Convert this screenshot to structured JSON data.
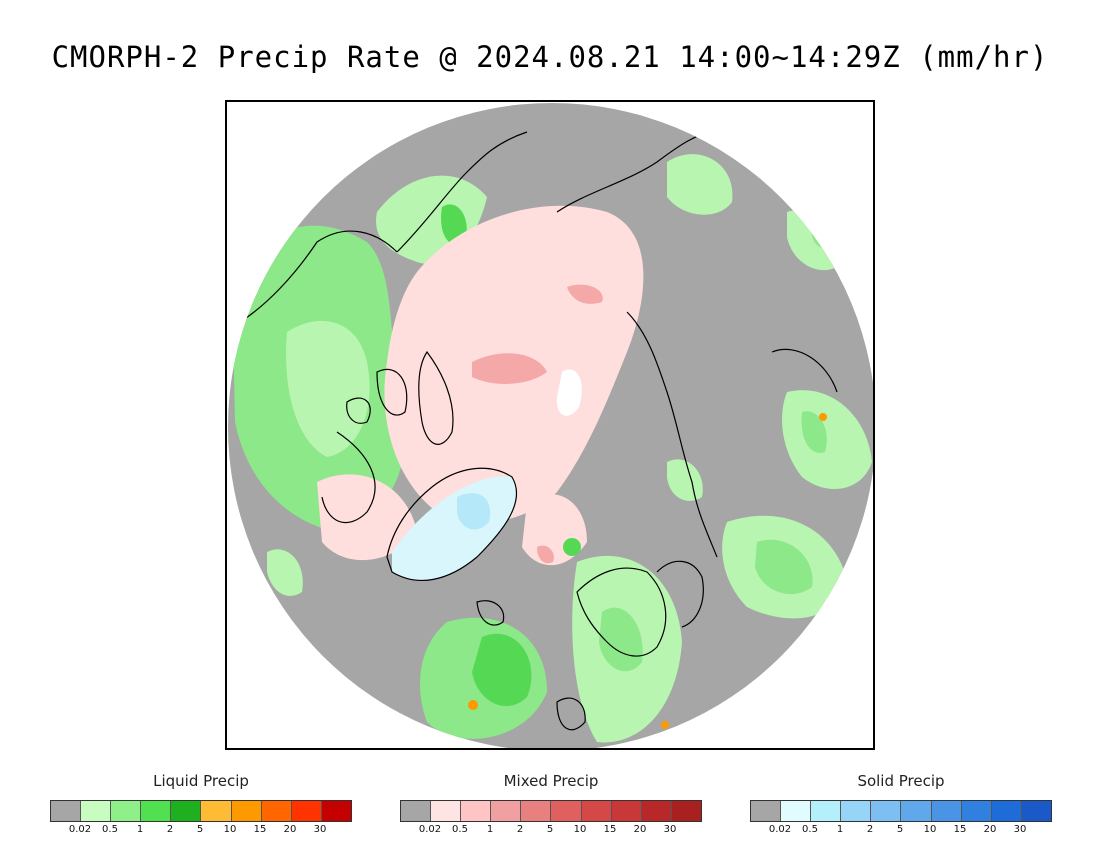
{
  "title": "CMORPH-2 Precip Rate @ 2024.08.21 14:00~14:29Z (mm/hr)",
  "map": {
    "projection": "polar stereographic (north pole)",
    "colors": {
      "no_precip": "#a6a6a6",
      "outside_domain": "#ffffff",
      "liquid_light": "#b8f5b0",
      "liquid_mid": "#8ce888",
      "liquid_strong": "#55d955",
      "mixed_light": "#ffdede",
      "mixed_mid": "#f5a8a8",
      "solid_light": "#d8f6fc",
      "solid_mid": "#b5e8f8",
      "warm": "#ff9900",
      "coastline": "#000000"
    }
  },
  "legends": [
    {
      "title": "Liquid Precip",
      "colors": [
        "#a6a6a6",
        "#c8fcc0",
        "#8ff08a",
        "#50e050",
        "#1eb01e",
        "#ffbb33",
        "#ff9900",
        "#ff6600",
        "#ff3300",
        "#c40000"
      ],
      "ticks": [
        "0.02",
        "0.5",
        "1",
        "2",
        "5",
        "10",
        "15",
        "20",
        "30"
      ]
    },
    {
      "title": "Mixed Precip",
      "colors": [
        "#a6a6a6",
        "#ffe4e4",
        "#ffc4c4",
        "#f0a0a0",
        "#e88080",
        "#e06060",
        "#d54848",
        "#c83838",
        "#b82828",
        "#a82020"
      ],
      "ticks": [
        "0.02",
        "0.5",
        "1",
        "2",
        "5",
        "10",
        "15",
        "20",
        "30"
      ]
    },
    {
      "title": "Solid Precip",
      "colors": [
        "#a6a6a6",
        "#e0fcff",
        "#b4f0fc",
        "#96d4f8",
        "#7dbff2",
        "#60a8ec",
        "#4a94e6",
        "#3080e0",
        "#1e6cd8",
        "#1a5ac8"
      ],
      "ticks": [
        "0.02",
        "0.5",
        "1",
        "2",
        "5",
        "10",
        "15",
        "20",
        "30"
      ]
    }
  ]
}
